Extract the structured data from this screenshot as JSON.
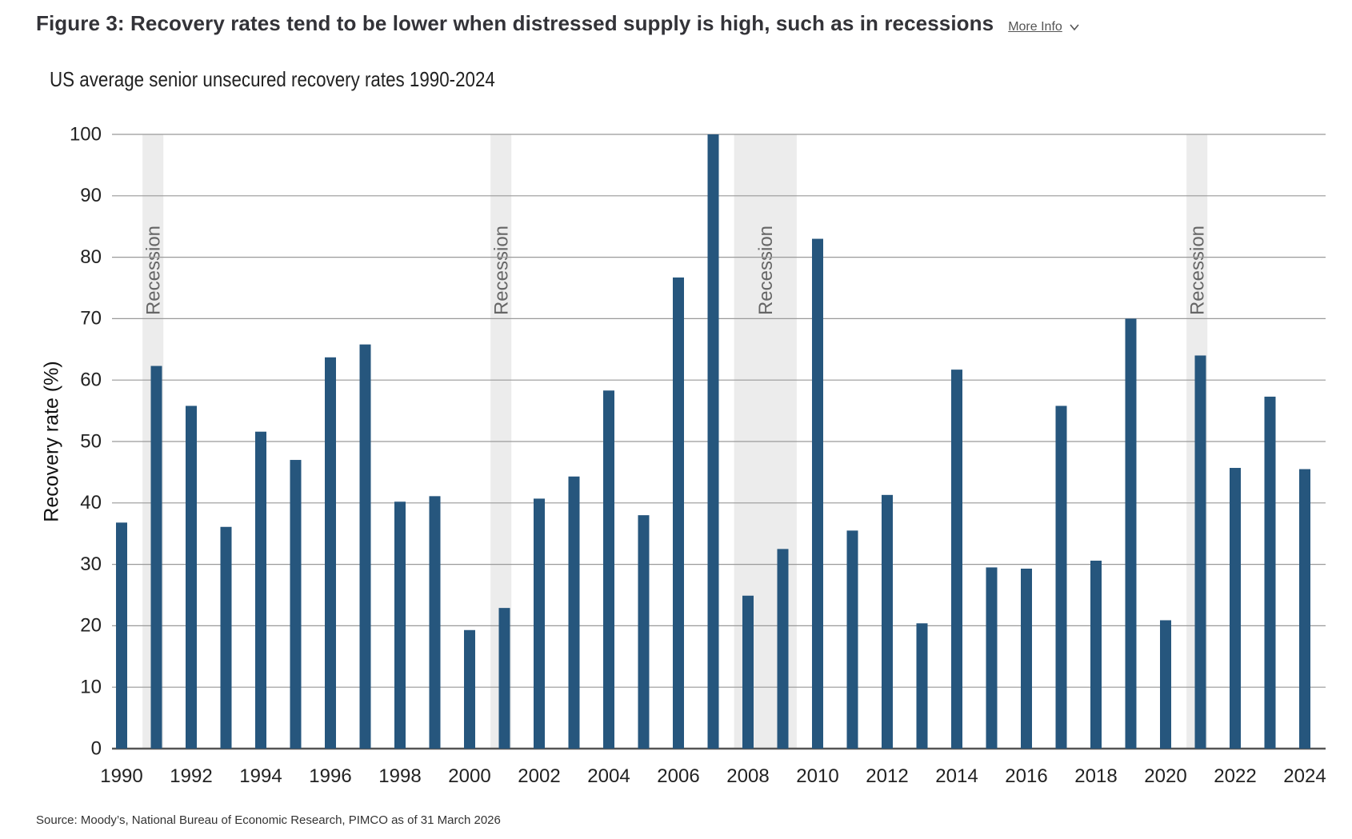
{
  "header": {
    "title": "Figure 3: Recovery rates tend to be lower when distressed supply is high, such as in recessions",
    "more_info_label": "More Info",
    "more_info_icon": "chevron-down-icon"
  },
  "source": "Source: Moody’s, National Bureau of Economic Research, PIMCO as of 31 March 2026",
  "colors": {
    "bar": "#26567d",
    "recession_band": "#ececec",
    "grid": "#999999",
    "axis": "#555555"
  },
  "chart_data": {
    "type": "bar",
    "title": "US average senior unsecured recovery rates 1990-2024",
    "xlabel": "",
    "ylabel": "Recovery rate (%)",
    "ylim": [
      0,
      100
    ],
    "yticks": [
      0,
      10,
      20,
      30,
      40,
      50,
      60,
      70,
      80,
      90,
      100
    ],
    "xtick_labels": [
      "1990",
      "1992",
      "1994",
      "1996",
      "1998",
      "2000",
      "2002",
      "2004",
      "2006",
      "2008",
      "2010",
      "2012",
      "2014",
      "2016",
      "2018",
      "2020",
      "2022",
      "2024"
    ],
    "grid": true,
    "categories": [
      1990,
      1991,
      1992,
      1993,
      1994,
      1995,
      1996,
      1997,
      1998,
      1999,
      2000,
      2001,
      2002,
      2003,
      2004,
      2005,
      2006,
      2007,
      2008,
      2009,
      2010,
      2011,
      2012,
      2013,
      2014,
      2015,
      2016,
      2017,
      2018,
      2019,
      2020,
      2021,
      2022,
      2023,
      2024
    ],
    "values": [
      36.8,
      62.3,
      55.8,
      36.1,
      51.6,
      47.0,
      63.7,
      65.8,
      40.2,
      41.1,
      19.3,
      22.9,
      40.7,
      44.3,
      58.3,
      38.0,
      76.7,
      100.0,
      24.9,
      32.5,
      83.0,
      35.5,
      41.3,
      20.4,
      61.7,
      29.5,
      29.3,
      55.8,
      30.6,
      70.0,
      20.9,
      64.0,
      45.7,
      57.3,
      45.5
    ],
    "recessions": [
      {
        "label": "Recession",
        "start": 1990.6,
        "end": 1991.2
      },
      {
        "label": "Recession",
        "start": 2000.6,
        "end": 2001.2
      },
      {
        "label": "Recession",
        "start": 2007.6,
        "end": 2009.4
      },
      {
        "label": "Recession",
        "start": 2020.6,
        "end": 2021.2
      }
    ]
  }
}
